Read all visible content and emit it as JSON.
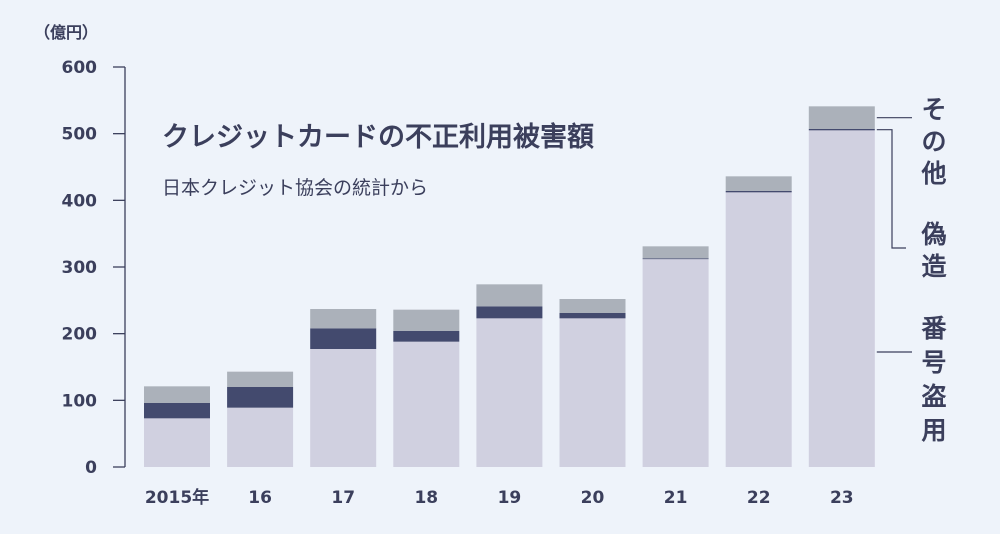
{
  "chart_data": {
    "type": "bar",
    "stacked": true,
    "title": "クレジットカードの不正利用被害額",
    "subtitle": "日本クレジット協会の統計から",
    "unit_label": "（億円）",
    "categories": [
      "2015年",
      "16",
      "17",
      "18",
      "19",
      "20",
      "21",
      "22",
      "23"
    ],
    "ylim": [
      0,
      600
    ],
    "yticks": [
      "0",
      "100",
      "200",
      "300",
      "400",
      "500",
      "600"
    ],
    "series": [
      {
        "name": "番号盗用",
        "color": "#d0d0e0",
        "values": [
          73,
          89,
          177,
          188,
          223,
          223,
          312,
          412,
          505
        ]
      },
      {
        "name": "偽造",
        "color": "#434a6e",
        "values": [
          23,
          31,
          31,
          16,
          18,
          8,
          1,
          2,
          2
        ]
      },
      {
        "name": "その他",
        "color": "#abb1ba",
        "values": [
          25,
          23,
          29,
          32,
          33,
          21,
          18,
          22,
          34
        ]
      }
    ],
    "grid": false,
    "legend_position": "right"
  }
}
